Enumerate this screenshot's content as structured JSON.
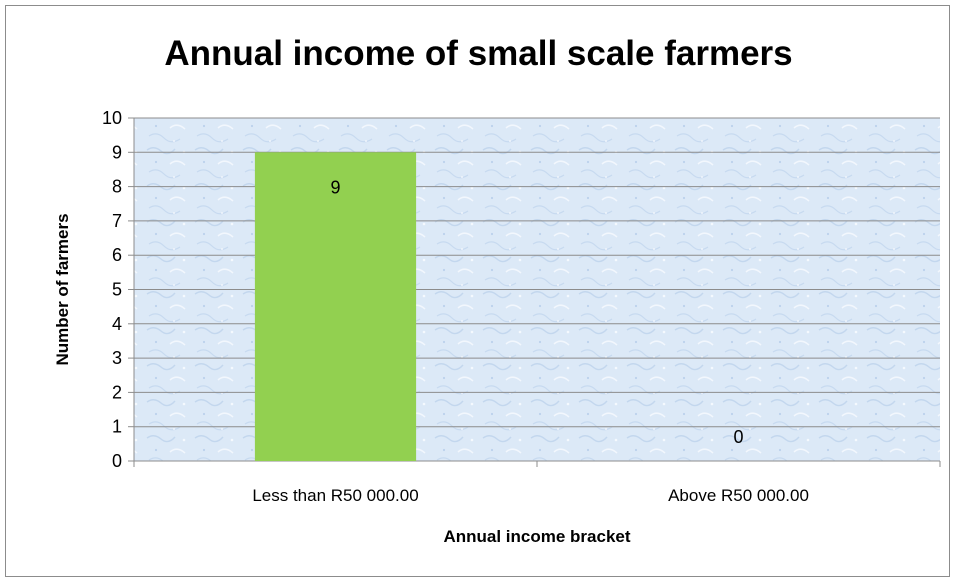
{
  "chart_data": {
    "type": "bar",
    "title": "Annual income of small scale farmers",
    "xlabel": "Annual income bracket",
    "ylabel": "Number of farmers",
    "categories": [
      "Less than R50 000.00",
      "Above R50 000.00"
    ],
    "values": [
      9,
      0
    ],
    "data_labels": [
      "9",
      "0"
    ],
    "ylim": [
      0,
      10
    ],
    "yticks": [
      "0",
      "1",
      "2",
      "3",
      "4",
      "5",
      "6",
      "7",
      "8",
      "9",
      "10"
    ],
    "grid": true,
    "legend": "none",
    "colors": {
      "bar": "#92d050",
      "plot_background": "#dce9f7",
      "gridline": "#8c8c8c"
    }
  }
}
